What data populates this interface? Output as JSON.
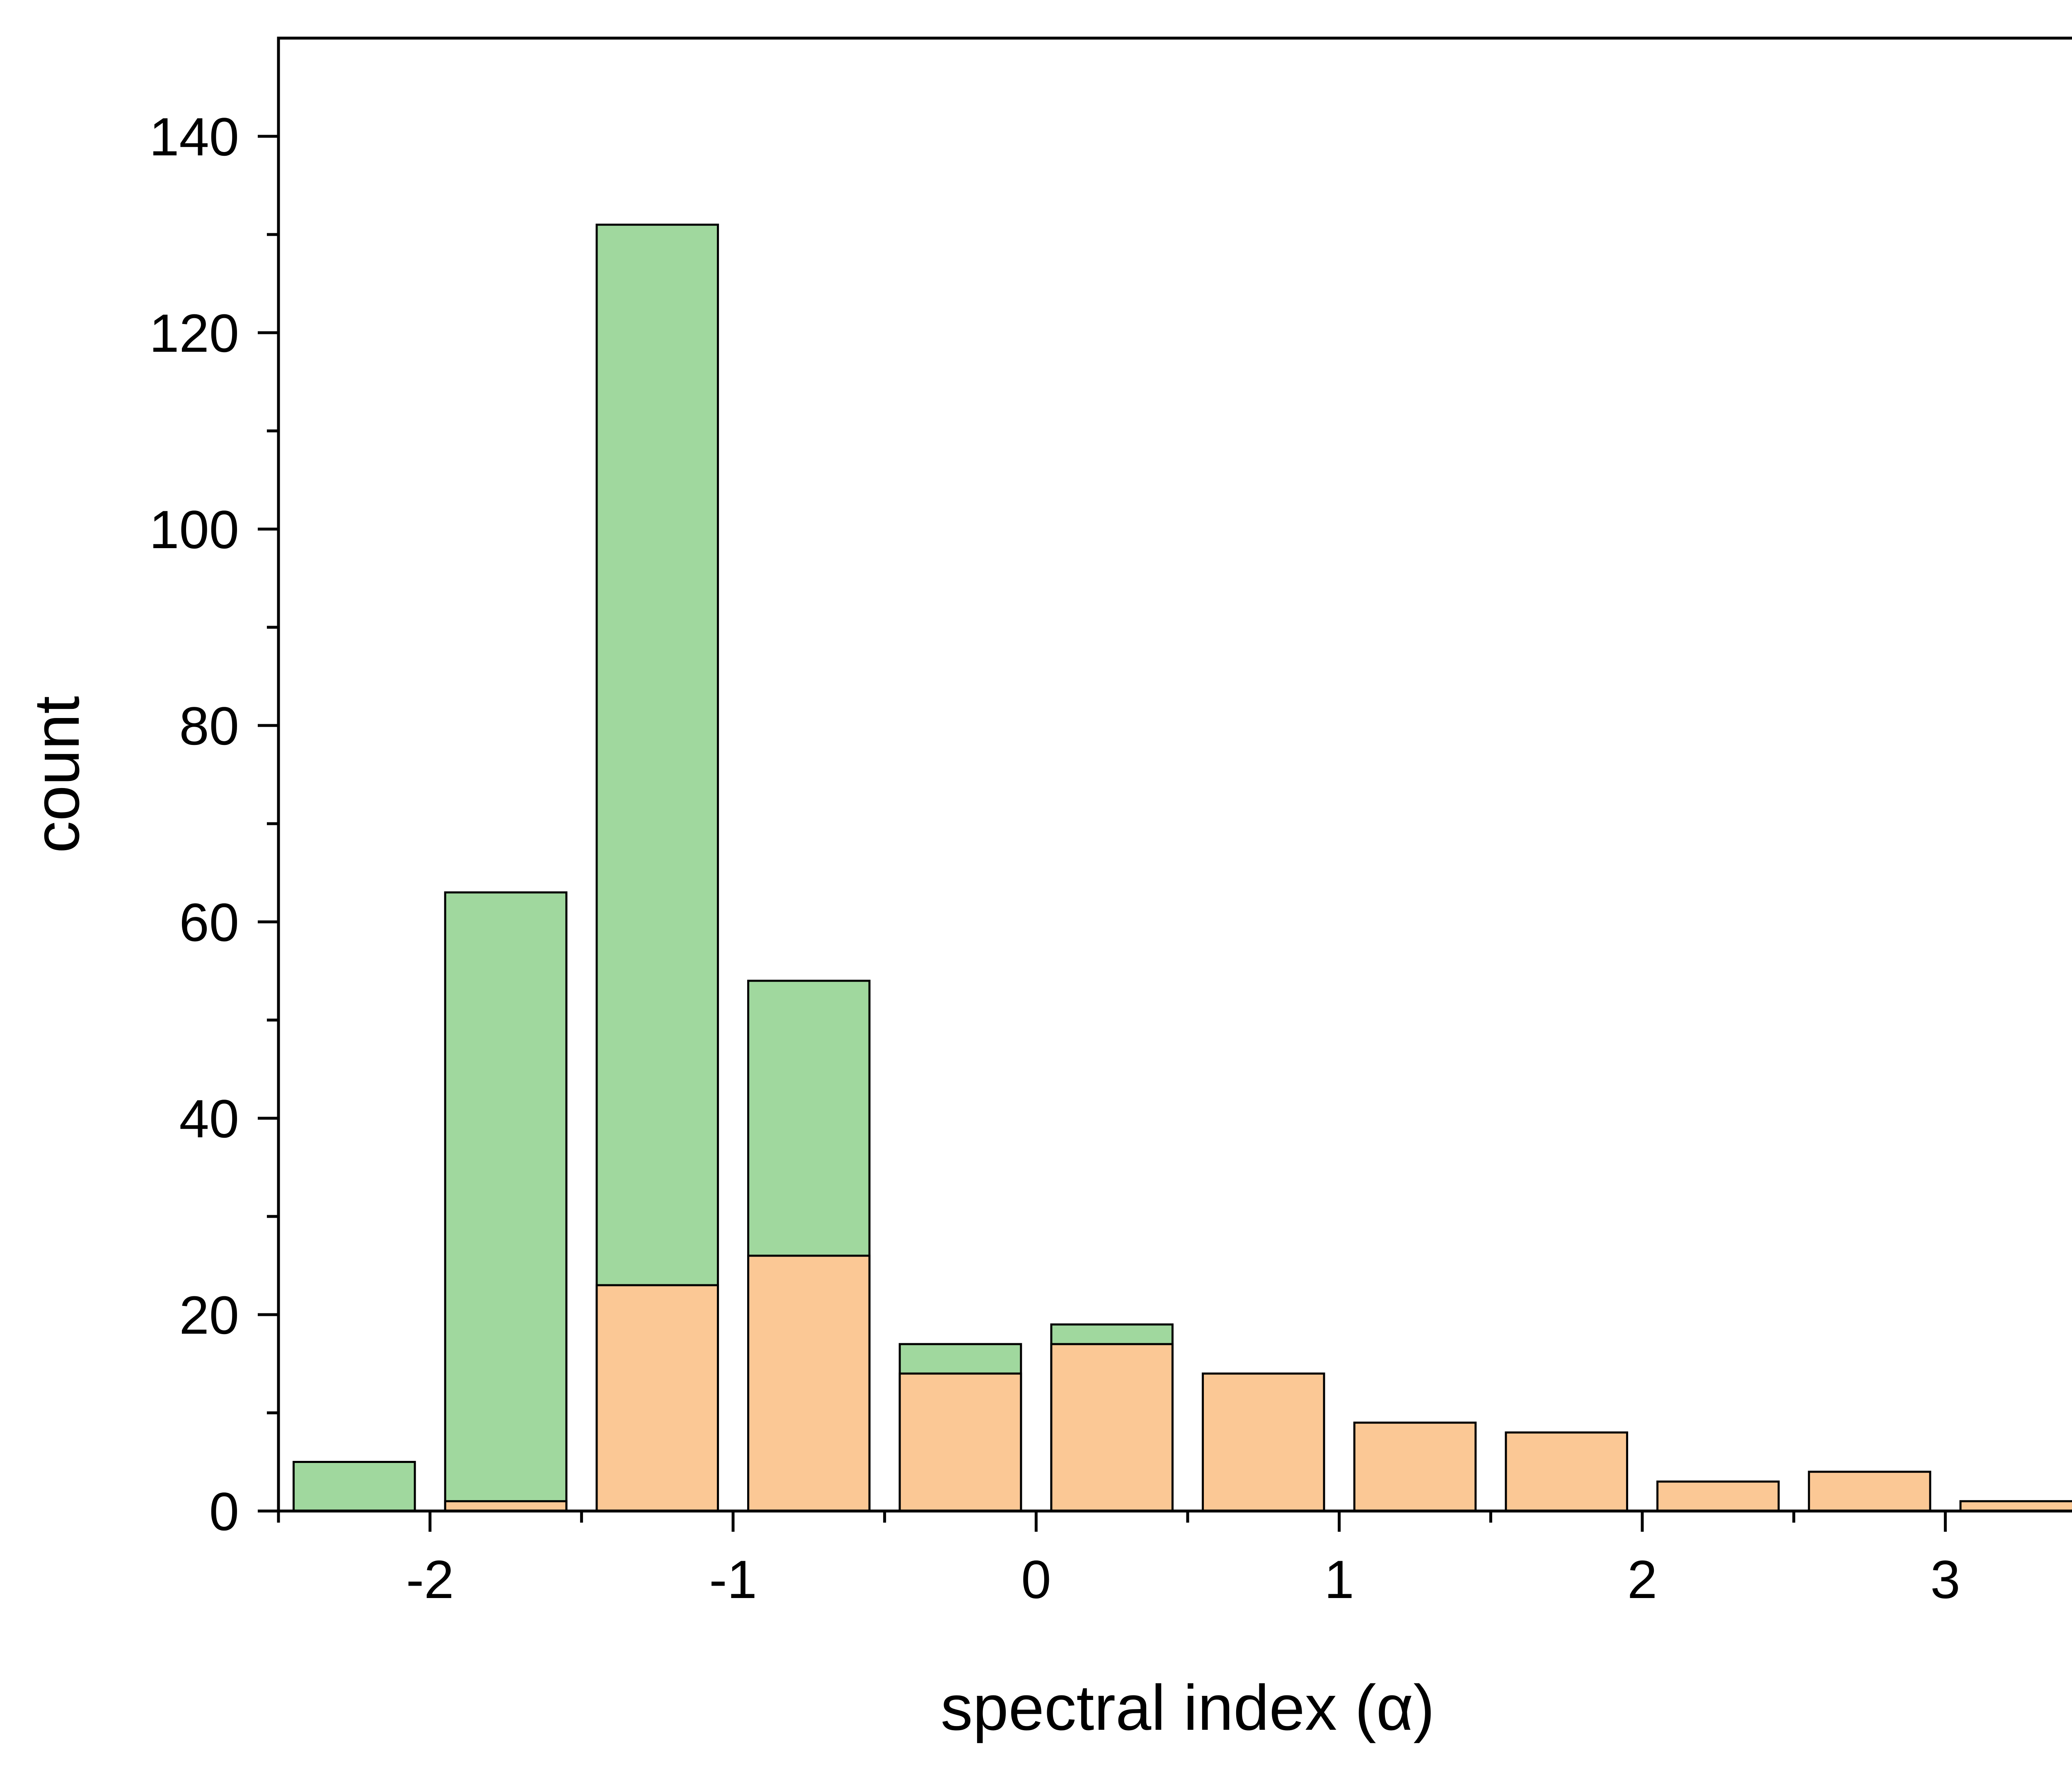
{
  "chart_data": {
    "type": "bar",
    "stacked": false,
    "overlapping": true,
    "xlabel": "spectral index (α)",
    "ylabel": "count",
    "xlim": [
      -2.5,
      3.5
    ],
    "ylim": [
      0,
      150
    ],
    "x_ticks": [
      -2,
      -1,
      0,
      1,
      2,
      3
    ],
    "x_tick_labels": [
      "-2",
      "-1",
      "0",
      "1",
      "2",
      "3"
    ],
    "x_minor_ticks": [
      -2.5,
      -1.5,
      -0.5,
      0.5,
      1.5,
      2.5,
      3.5
    ],
    "y_ticks": [
      0,
      20,
      40,
      60,
      80,
      100,
      120,
      140
    ],
    "y_tick_labels": [
      "0",
      "20",
      "40",
      "60",
      "80",
      "100",
      "120",
      "140"
    ],
    "y_minor_step": 10,
    "grid": false,
    "bin_width": 0.5,
    "bar_width": 0.4,
    "bin_centers": [
      -2.25,
      -1.75,
      -1.25,
      -0.75,
      -0.25,
      0.25,
      0.75,
      1.25,
      1.75,
      2.25,
      2.75,
      3.25
    ],
    "series": [
      {
        "color": "#a0d89e",
        "values": [
          5,
          63,
          131,
          54,
          17,
          19,
          0,
          0,
          0,
          0,
          0,
          0
        ]
      },
      {
        "color": "#fbc895",
        "values": [
          0,
          1,
          23,
          26,
          14,
          17,
          14,
          9,
          8,
          3,
          4,
          1
        ]
      }
    ]
  }
}
